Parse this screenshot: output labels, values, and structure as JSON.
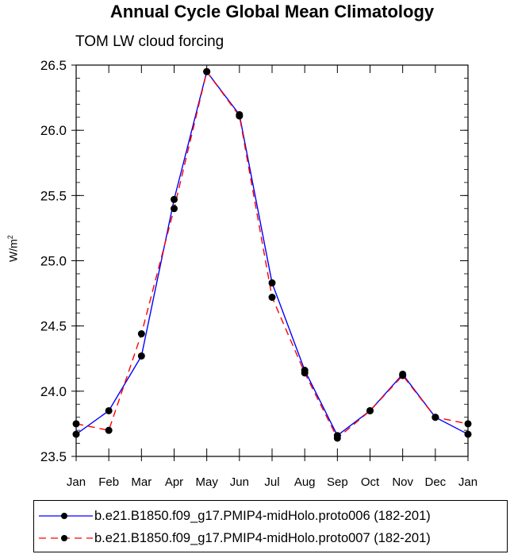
{
  "chart_data": {
    "type": "line",
    "title": "Annual Cycle Global Mean Climatology",
    "subtitle": "TOM LW cloud forcing",
    "ylabel": "W/m",
    "ylabel_sup": "2",
    "xlabel": "",
    "categories": [
      "Jan",
      "Feb",
      "Mar",
      "Apr",
      "May",
      "Jun",
      "Jul",
      "Aug",
      "Sep",
      "Oct",
      "Nov",
      "Dec",
      "Jan"
    ],
    "ylim": [
      23.5,
      26.5
    ],
    "yticks": [
      23.5,
      24.0,
      24.5,
      25.0,
      25.5,
      26.0,
      26.5
    ],
    "ytick_labels": [
      "23.5",
      "24.0",
      "24.5",
      "25.0",
      "25.5",
      "26.0",
      "26.5"
    ],
    "series": [
      {
        "name": "b.e21.B1850.f09_g17.PMIP4-midHolo.proto006 (182-201)",
        "color": "#0000ff",
        "dash": "solid",
        "values": [
          23.67,
          23.85,
          24.27,
          25.47,
          26.45,
          26.12,
          24.83,
          24.16,
          23.66,
          23.85,
          24.13,
          23.8,
          23.67
        ]
      },
      {
        "name": "b.e21.B1850.f09_g17.PMIP4-midHolo.proto007 (182-201)",
        "color": "#ff0000",
        "dash": "dashed",
        "values": [
          23.75,
          23.7,
          24.44,
          25.4,
          26.45,
          26.11,
          24.72,
          24.14,
          23.64,
          23.85,
          24.12,
          23.8,
          23.75
        ]
      }
    ],
    "grid": false,
    "legend_position": "bottom"
  }
}
